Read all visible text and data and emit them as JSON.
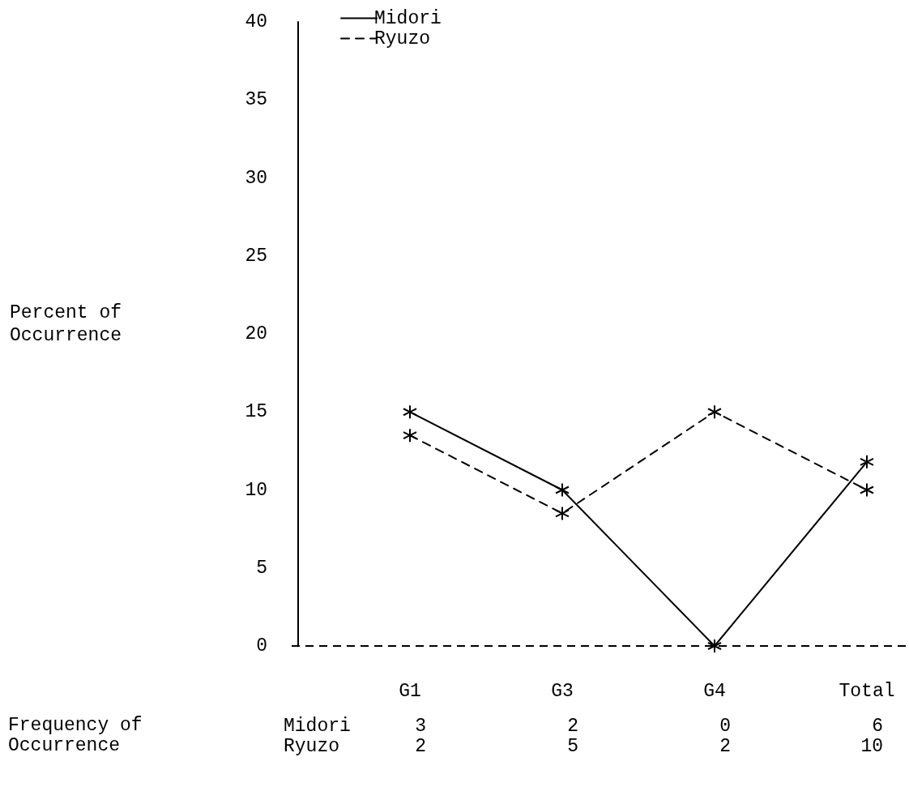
{
  "chart_data": {
    "type": "line",
    "categories": [
      "G1",
      "G3",
      "G4",
      "Total"
    ],
    "series": [
      {
        "name": "Midori",
        "color": "#000000",
        "line_style": "solid",
        "values": [
          15,
          10,
          0,
          11.8
        ]
      },
      {
        "name": "Ryuzo",
        "color": "#000000",
        "line_style": "dashed",
        "values": [
          13.5,
          8.5,
          15,
          10
        ]
      }
    ],
    "ylim": [
      0,
      40
    ],
    "yticks": [
      0,
      5,
      10,
      15,
      20,
      25,
      30,
      35,
      40
    ],
    "grid": false,
    "legend": "top left",
    "marker": "cross",
    "ref_lines": [
      {
        "axis": "y",
        "value": 0,
        "line_style": "dashed",
        "color": "#000000"
      }
    ],
    "annotations": [
      "Percent of Occurrence",
      "Frequency of Occurrence",
      "Midori",
      "3",
      "2",
      "0",
      "6",
      "Ryuzo",
      "2",
      "5",
      "2",
      "10"
    ]
  }
}
